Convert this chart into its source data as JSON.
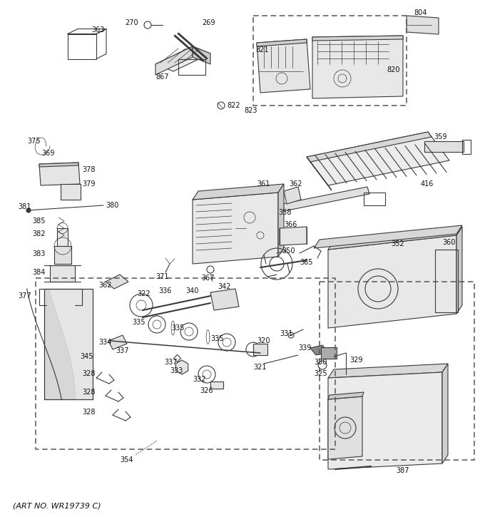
{
  "art_no": "(ART NO. WR19739 C)",
  "bg_color": "#ffffff",
  "figsize": [
    6.8,
    7.25
  ],
  "dpi": 100,
  "line_color": "#3a3a3a",
  "label_fontsize": 7.0,
  "lw_main": 0.8,
  "lw_thin": 0.5,
  "lw_thick": 1.5
}
